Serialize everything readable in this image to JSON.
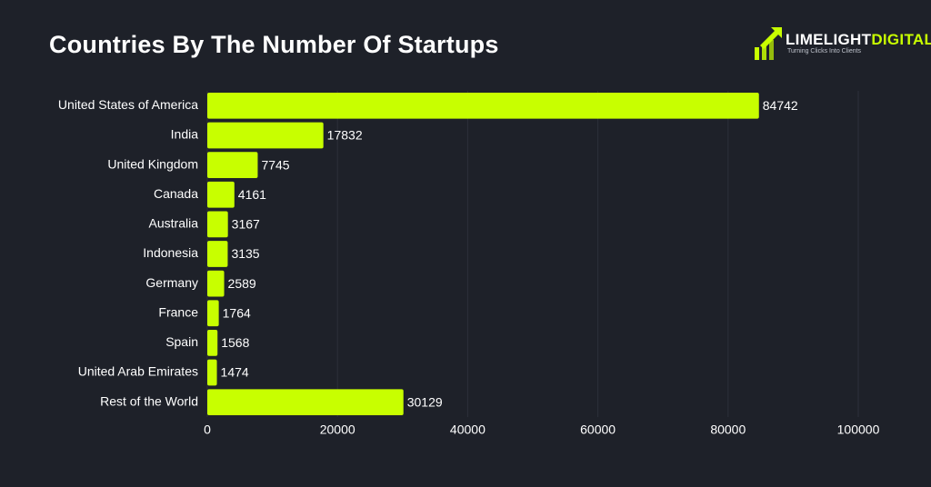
{
  "brand": {
    "name_part1": "LIMELIGHT",
    "name_part2": "DIGITAL",
    "tagline": "Turning Clicks Into Clients",
    "logo_icon": "lime-arrows-icon",
    "accent_color": "#c8ff00"
  },
  "chart_data": {
    "type": "bar",
    "orientation": "horizontal",
    "title": "Countries By The Number Of Startups",
    "xlabel": "",
    "ylabel": "",
    "categories": [
      "United States of America",
      "India",
      "United Kingdom",
      "Canada",
      "Australia",
      "Indonesia",
      "Germany",
      "France",
      "Spain",
      "United Arab Emirates",
      "Rest of the World"
    ],
    "values": [
      84742,
      17832,
      7745,
      4161,
      3167,
      3135,
      2589,
      1764,
      1568,
      1474,
      30129
    ],
    "xlim": [
      0,
      100000
    ],
    "xticks": [
      0,
      20000,
      40000,
      60000,
      80000,
      100000
    ],
    "grid": true,
    "bar_color": "#c8ff00",
    "background_color": "#1e2129"
  }
}
